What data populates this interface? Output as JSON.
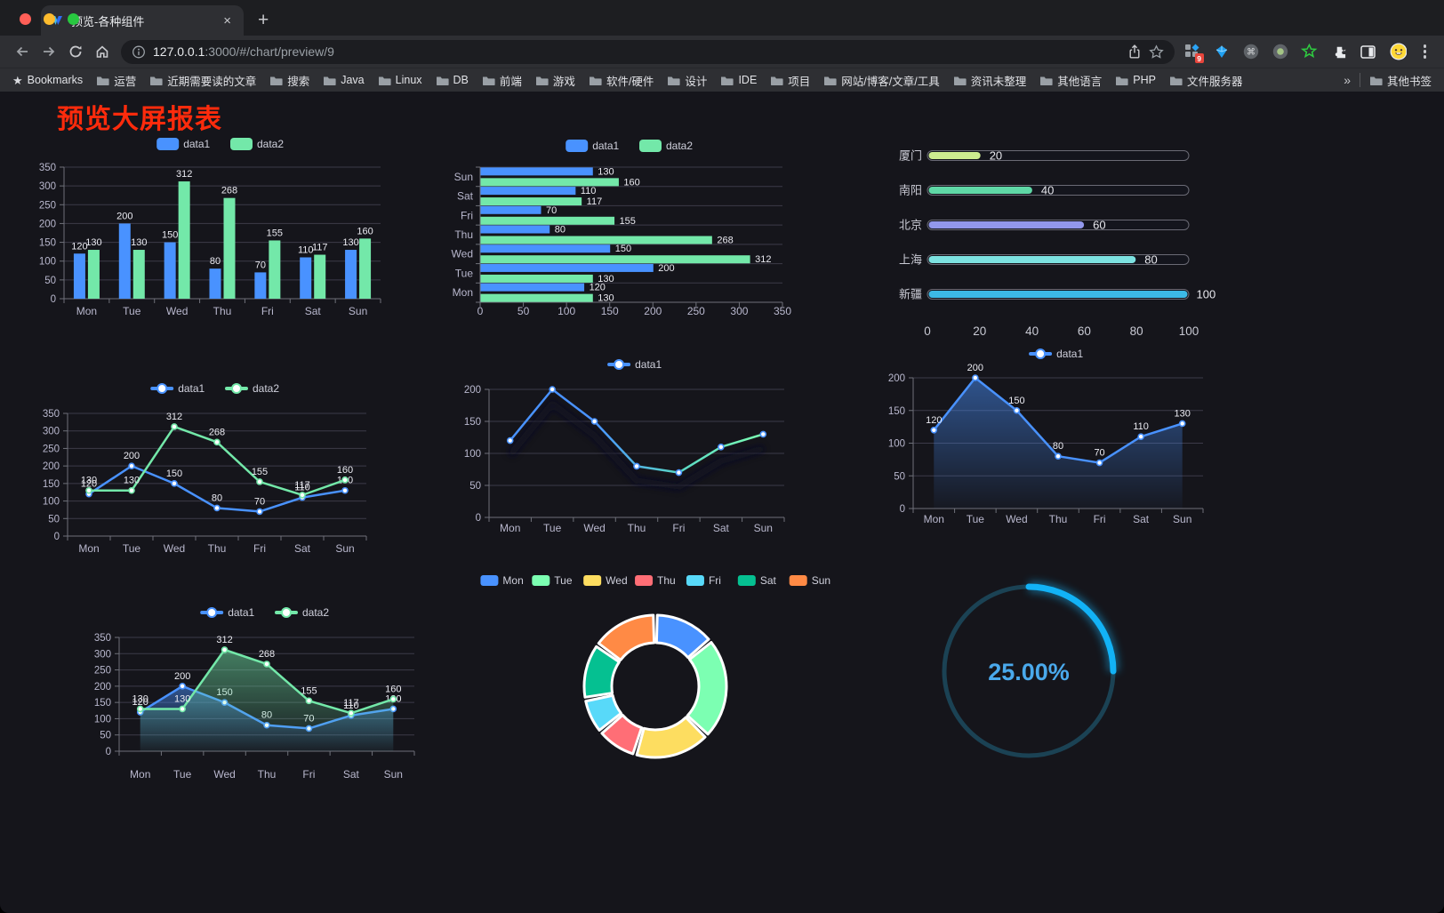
{
  "browser": {
    "tab": {
      "title": "预览-各种组件",
      "close_glyph": "×",
      "new_tab_glyph": "+"
    },
    "address": {
      "url_host": "127.0.0.1",
      "url_rest": ":3000/#/chart/preview/9"
    },
    "bookmarks_bar": {
      "root_label": "Bookmarks",
      "folders": [
        "运营",
        "近期需要读的文章",
        "搜索",
        "Java",
        "Linux",
        "DB",
        "前端",
        "游戏",
        "软件/硬件",
        "设计",
        "IDE",
        "项目",
        "网站/博客/文章/工具",
        "资讯未整理",
        "其他语言",
        "PHP",
        "文件服务器"
      ],
      "overflow_glyph": "»",
      "other_label": "其他书签"
    },
    "extensions_badge": "9"
  },
  "page": {
    "title": "预览大屏报表"
  },
  "colors": {
    "data1": "#4992ff",
    "data2": "#73e8a9",
    "axis_text": "#B9B8CE",
    "grid_line": "#3c3b49",
    "axis_line": "#6E7079",
    "value_label": "#ebebf2",
    "title_red": "#fe2b0c"
  },
  "chart_data": [
    {
      "id": "bar-grouped",
      "type": "bar",
      "legend": "rect",
      "categories": [
        "Mon",
        "Tue",
        "Wed",
        "Thu",
        "Fri",
        "Sat",
        "Sun"
      ],
      "series": [
        {
          "name": "data1",
          "color": "#4992ff",
          "values": [
            120,
            200,
            150,
            80,
            70,
            110,
            130
          ]
        },
        {
          "name": "data2",
          "color": "#73e8a9",
          "values": [
            130,
            130,
            312,
            268,
            155,
            117,
            160
          ]
        }
      ],
      "ylim": [
        0,
        350
      ],
      "ystep": 50,
      "labels": true
    },
    {
      "id": "bar-horizontal",
      "type": "bar-horizontal",
      "legend": "rect",
      "categories": [
        "Mon",
        "Tue",
        "Wed",
        "Thu",
        "Fri",
        "Sat",
        "Sun"
      ],
      "series": [
        {
          "name": "data1",
          "color": "#4992ff",
          "values": [
            120,
            200,
            150,
            80,
            70,
            110,
            130
          ]
        },
        {
          "name": "data2",
          "color": "#73e8a9",
          "values": [
            130,
            130,
            312,
            268,
            155,
            117,
            160
          ]
        }
      ],
      "xlim": [
        0,
        350
      ],
      "xstep": 50,
      "labels": true
    },
    {
      "id": "progress",
      "type": "progress",
      "max": 100,
      "items": [
        {
          "label": "厦门",
          "value": 20,
          "color": "#cdeb8f"
        },
        {
          "label": "南阳",
          "value": 40,
          "color": "#5fd8a6"
        },
        {
          "label": "北京",
          "value": 60,
          "color": "#9298ec"
        },
        {
          "label": "上海",
          "value": 80,
          "color": "#7de2e1"
        },
        {
          "label": "新疆",
          "value": 100,
          "color": "#3cb9e6"
        }
      ],
      "xticks": [
        0,
        20,
        40,
        60,
        80,
        100
      ]
    },
    {
      "id": "line-dual",
      "type": "line",
      "legend": "line",
      "categories": [
        "Mon",
        "Tue",
        "Wed",
        "Thu",
        "Fri",
        "Sat",
        "Sun"
      ],
      "series": [
        {
          "name": "data1",
          "color": "#4992ff",
          "values": [
            120,
            200,
            150,
            80,
            70,
            110,
            130
          ]
        },
        {
          "name": "data2",
          "color": "#73e8a9",
          "values": [
            130,
            130,
            312,
            268,
            155,
            117,
            160
          ]
        }
      ],
      "ylim": [
        0,
        350
      ],
      "ystep": 50,
      "labels": true
    },
    {
      "id": "line-gradient",
      "type": "line",
      "legend": "line",
      "categories": [
        "Mon",
        "Tue",
        "Wed",
        "Thu",
        "Fri",
        "Sat",
        "Sun"
      ],
      "series": [
        {
          "name": "data1",
          "color": "#4992ff",
          "gradient": [
            "#4992ff",
            "#4992ff",
            "#5ad8c6",
            "#7cffb2"
          ],
          "shadow": true,
          "values": [
            120,
            200,
            150,
            80,
            70,
            110,
            130
          ]
        }
      ],
      "ylim": [
        0,
        200
      ],
      "ystep": 50,
      "labels": false
    },
    {
      "id": "area-single",
      "type": "line",
      "legend": "line",
      "categories": [
        "Mon",
        "Tue",
        "Wed",
        "Thu",
        "Fri",
        "Sat",
        "Sun"
      ],
      "series": [
        {
          "name": "data1",
          "color": "#4992ff",
          "area": true,
          "values": [
            120,
            200,
            150,
            80,
            70,
            110,
            130
          ]
        }
      ],
      "ylim": [
        0,
        200
      ],
      "ystep": 50,
      "labels": true
    },
    {
      "id": "area-dual",
      "type": "line",
      "legend": "line",
      "categories": [
        "Mon",
        "Tue",
        "Wed",
        "Thu",
        "Fri",
        "Sat",
        "Sun"
      ],
      "series": [
        {
          "name": "data1",
          "color": "#4992ff",
          "area": true,
          "values": [
            120,
            200,
            150,
            80,
            70,
            110,
            130
          ]
        },
        {
          "name": "data2",
          "color": "#73e8a9",
          "area": true,
          "values": [
            130,
            130,
            312,
            268,
            155,
            117,
            160
          ]
        }
      ],
      "ylim": [
        0,
        350
      ],
      "ystep": 50,
      "labels": true
    },
    {
      "id": "donut",
      "type": "pie",
      "categories": [
        "Mon",
        "Tue",
        "Wed",
        "Thu",
        "Fri",
        "Sat",
        "Sun"
      ],
      "values": [
        120,
        200,
        150,
        80,
        70,
        110,
        130
      ],
      "colors": [
        "#4992ff",
        "#7cffb2",
        "#fddd60",
        "#ff6e76",
        "#58d9f9",
        "#05c091",
        "#ff8a45"
      ],
      "legend_position": "top"
    },
    {
      "id": "gauge",
      "type": "gauge",
      "value": 25,
      "label": "25.00%",
      "progress_color": "#12b2f6",
      "track_color": "#1b4254",
      "text_color": "#4aa9ec"
    }
  ]
}
